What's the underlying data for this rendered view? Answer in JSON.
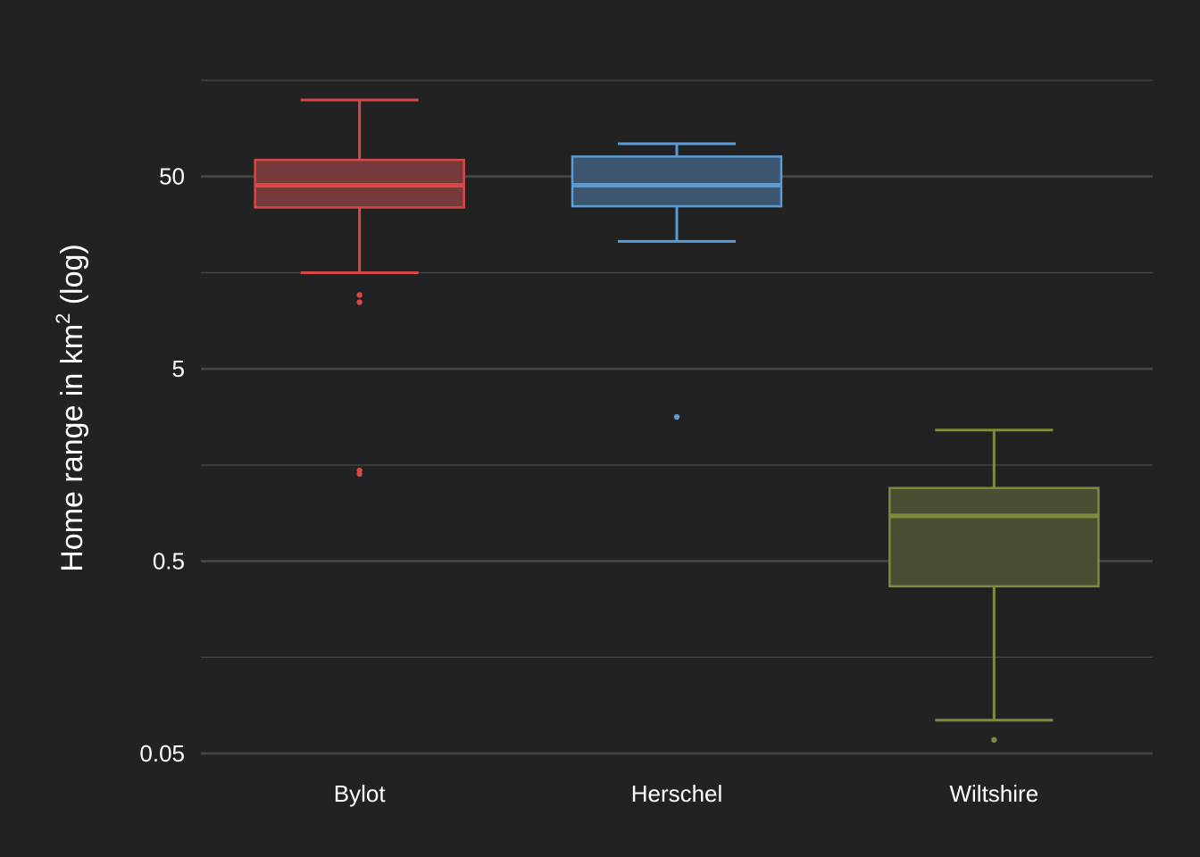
{
  "chart_data": {
    "type": "box",
    "title": "",
    "xlabel": "",
    "ylabel": {
      "main": "Home range in km",
      "sup": "2",
      "suffix": " (log)"
    },
    "y_scale": "log10",
    "ylim": [
      0.05,
      200
    ],
    "y_major_ticks": [
      0.05,
      0.5,
      5,
      50
    ],
    "y_major_tick_labels": [
      "0.05",
      "0.5",
      "5",
      "50"
    ],
    "y_minor_ticks": [
      0.158,
      1.58,
      15.8,
      158
    ],
    "grid": true,
    "legend": "none",
    "background": "#222222",
    "grid_color": "#444444",
    "categories": [
      "Bylot",
      "Herschel",
      "Wiltshire"
    ],
    "series": [
      {
        "category": "Bylot",
        "color": "#d94848",
        "fill": "#763a3b",
        "whisker_low": 15.8,
        "q1": 34.5,
        "median": 45,
        "q3": 61,
        "whisker_high": 125,
        "outliers": [
          12.1,
          11.1,
          1.48,
          1.42
        ]
      },
      {
        "category": "Herschel",
        "color": "#5b9bd5",
        "fill": "#3c566f",
        "whisker_low": 23,
        "q1": 35,
        "median": 45,
        "q3": 63.5,
        "whisker_high": 74,
        "outliers": [
          2.81
        ]
      },
      {
        "category": "Wiltshire",
        "color": "#7f8a3a",
        "fill": "#4a4f33",
        "whisker_low": 0.0745,
        "q1": 0.37,
        "median": 0.86,
        "q3": 1.2,
        "whisker_high": 2.4,
        "outliers": [
          0.0588
        ]
      }
    ]
  }
}
